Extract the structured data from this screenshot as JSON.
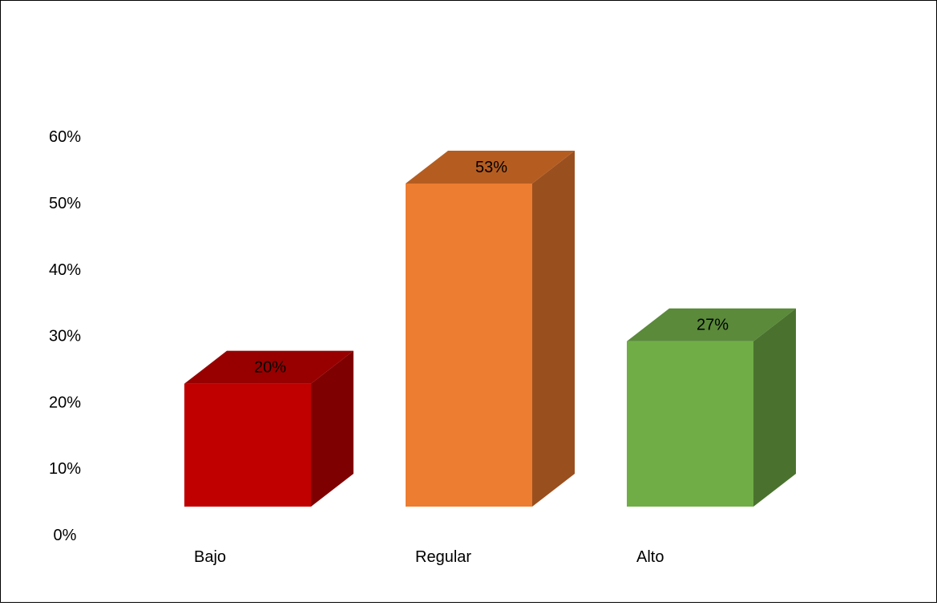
{
  "chart_data": {
    "type": "bar",
    "categories": [
      "Bajo",
      "Regular",
      "Alto"
    ],
    "values": [
      20,
      53,
      27
    ],
    "data_labels": [
      "20%",
      "53%",
      "27%"
    ],
    "ylim": [
      0,
      60
    ],
    "y_ticks": [
      0,
      10,
      20,
      30,
      40,
      50,
      60
    ],
    "y_tick_labels": [
      "0%",
      "10%",
      "20%",
      "30%",
      "40%",
      "50%",
      "60%"
    ],
    "grid": false,
    "legend": "none",
    "style": "3d-column",
    "colors": [
      {
        "front": "#c00000",
        "side": "#7f0000",
        "top": "#980000"
      },
      {
        "front": "#ed7d31",
        "side": "#9a4f1e",
        "top": "#b55d21"
      },
      {
        "front": "#70ad47",
        "side": "#4a722e",
        "top": "#5a8a3a"
      }
    ]
  }
}
